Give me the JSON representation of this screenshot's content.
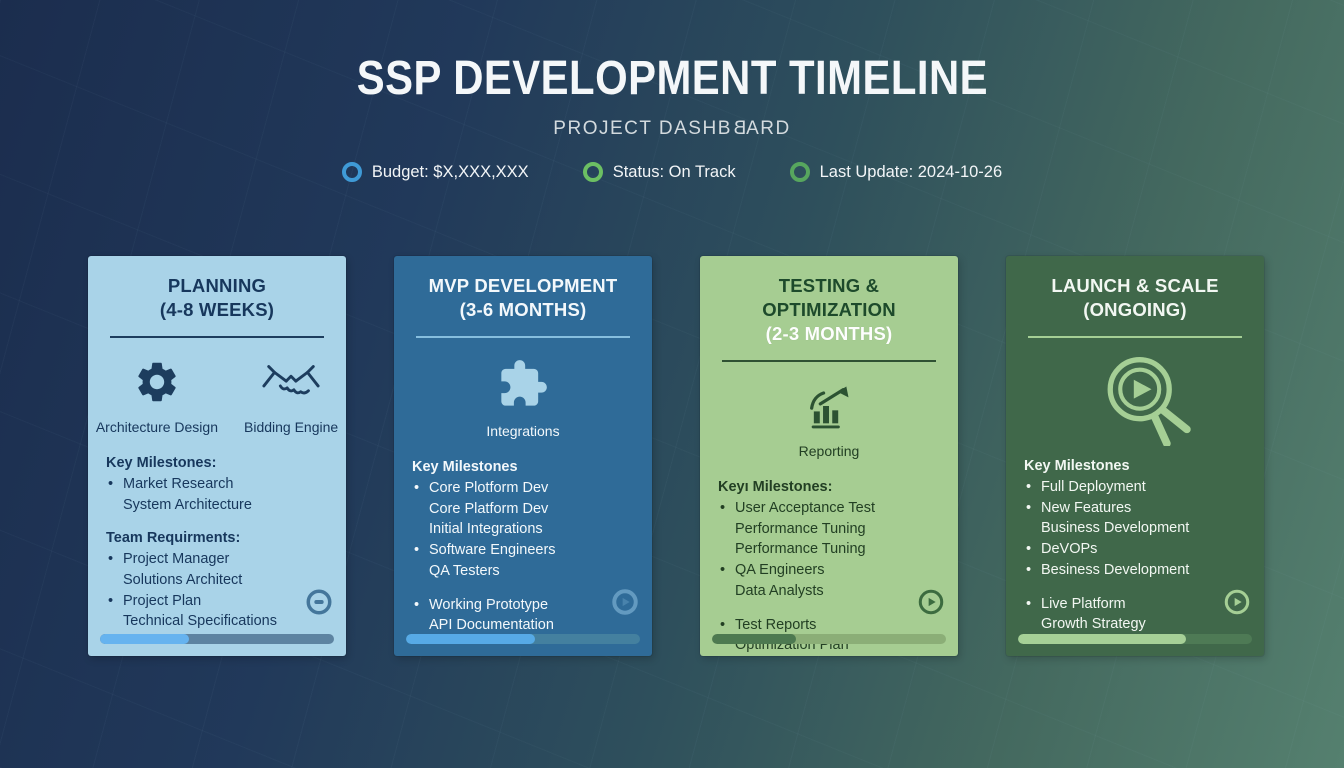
{
  "header": {
    "title": "SSP DEVELOPMENT TIMELINE",
    "subtitle_pre": "PROJECT DASHB",
    "subtitle_mirrored": "B",
    "subtitle_post": "ARD",
    "badges": [
      {
        "label": "Budget: $X,XXX,XXX",
        "ring_color": "#3f9ad6"
      },
      {
        "label": "Status: On Track",
        "ring_color": "#6cbf63"
      },
      {
        "label": "Last Update: 2024-10-26",
        "ring_color": "#57a65e"
      }
    ]
  },
  "cards": [
    {
      "title": "PLANNING",
      "duration": "(4-8 WEEKS)",
      "icons": [
        {
          "name": "gear-icon",
          "label": "Architecture Design"
        },
        {
          "name": "handshake-icon",
          "label": "Bidding Engine"
        }
      ],
      "lines": [
        "Key Milestones:",
        "Market Research",
        "System Architecture",
        "Team Requirments:",
        "Project Manager",
        "Solutions Architect",
        "Project Plan",
        "Technical Specifications"
      ],
      "progress_percent": 38,
      "colors": {
        "bg": "#a9d3e8",
        "text": "#17375c",
        "progress_fill": "#66b3ef",
        "progress_track": "#5d83a1"
      }
    },
    {
      "title": "MVP DEVELOPMENT",
      "duration": "(3-6 MONTHS)",
      "icons": [
        {
          "name": "puzzle-icon",
          "label": "Integrations"
        }
      ],
      "lines": [
        "Key Milestones",
        "Core Plotform Dev",
        "Core Platform Dev",
        "Initial Integrations",
        "Software Engineers",
        "QA Testers",
        "Working Prototype",
        "API Documentation"
      ],
      "progress_percent": 55,
      "colors": {
        "bg": "#2f6b98",
        "text": "#f3f8fb",
        "progress_fill": "#57aae6",
        "progress_track": "#44809f"
      }
    },
    {
      "title": "TESTING & OPTIMIZATION",
      "duration": "(2-3 MONTHS)",
      "icons": [
        {
          "name": "chart-growth-icon",
          "label": "Reporting"
        }
      ],
      "lines": [
        "Keyı Milestones:",
        "User Acceptance Test",
        "Performance Tuning",
        "Performance Tuning",
        "QA Engineers",
        "Data Analysts",
        "Test Reports",
        "Optimization Plan"
      ],
      "progress_percent": 36,
      "colors": {
        "bg": "#a6cd92",
        "text": "#223f23",
        "progress_fill": "#4d7950",
        "progress_track": "#8bae77"
      }
    },
    {
      "title": "LAUNCH & SCALE",
      "duration": "(ONGOING)",
      "icons": [
        {
          "name": "play-cursor-icon",
          "label": ""
        }
      ],
      "lines": [
        "Key Milestones",
        "Full Deployment",
        "New Features",
        "Business Development",
        "DeVOPs",
        "Besiness Development",
        "Live Platform",
        "Growth Strategy"
      ],
      "progress_percent": 72,
      "colors": {
        "bg": "#40684a",
        "text": "#f2f7f2",
        "progress_fill": "#a6d097",
        "progress_track": "#4e7a55"
      }
    }
  ]
}
